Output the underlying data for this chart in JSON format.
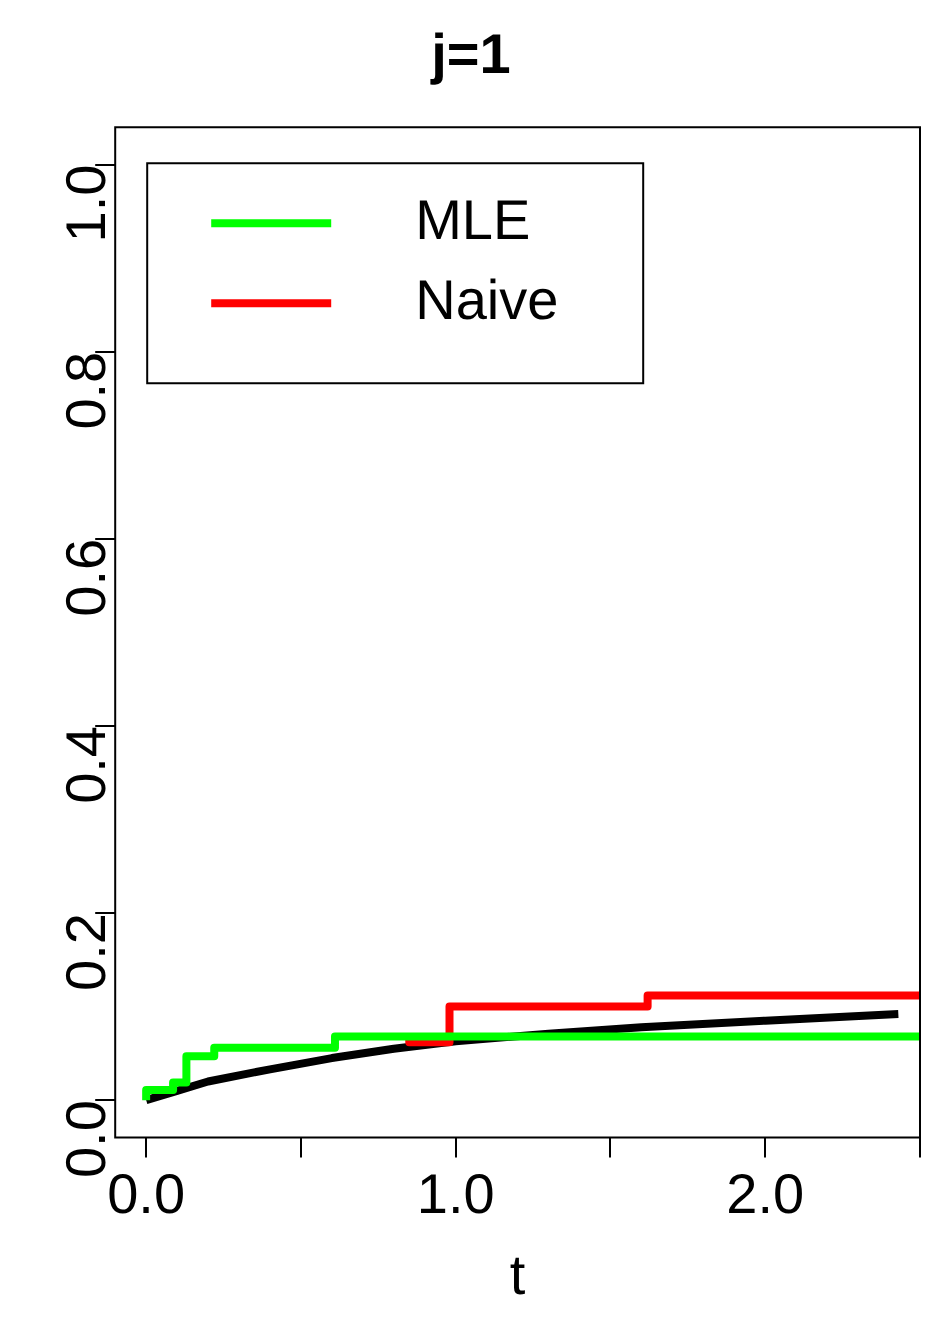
{
  "chart_data": {
    "type": "step",
    "title": "j=1",
    "xlabel": "t",
    "xlim": [
      -0.1,
      2.5
    ],
    "xticks": [
      {
        "value": 0,
        "label": "0.0"
      },
      {
        "value": 0.5,
        "label": null
      },
      {
        "value": 1,
        "label": "1.0"
      },
      {
        "value": 1.5,
        "label": null
      },
      {
        "value": 2,
        "label": "2.0"
      },
      {
        "value": 2.5,
        "label": null
      }
    ],
    "ylim": [
      -0.04,
      1.04
    ],
    "yticks": [
      {
        "value": 0,
        "label": "0.0"
      },
      0.2,
      0.4,
      0.6,
      0.8,
      {
        "value": 1,
        "label": "1.0"
      }
    ],
    "grid": false,
    "legend": "top left",
    "series": [
      {
        "type": "line",
        "color": "#000000",
        "x": [
          0,
          0.1,
          0.2,
          0.4,
          0.6,
          0.8,
          1.0,
          1.3,
          1.6,
          2.0,
          2.43
        ],
        "values": [
          0,
          0.01,
          0.02,
          0.033,
          0.045,
          0.055,
          0.063,
          0.071,
          0.078,
          0.085,
          0.092
        ]
      },
      {
        "name": "Naive",
        "color": "#ff0000",
        "x": [
          0.85,
          0.98,
          1.62,
          2.39,
          2.5
        ],
        "values": [
          0.067,
          0.062,
          0.1,
          0.112,
          0.112
        ]
      },
      {
        "name": "MLE",
        "color": "#00ff00",
        "x": [
          0,
          0.087,
          0.13,
          0.22,
          0.61,
          0.97,
          2.5
        ],
        "values": [
          0,
          0.011,
          0.019,
          0.047,
          0.056,
          0.068,
          0.068
        ]
      }
    ]
  }
}
